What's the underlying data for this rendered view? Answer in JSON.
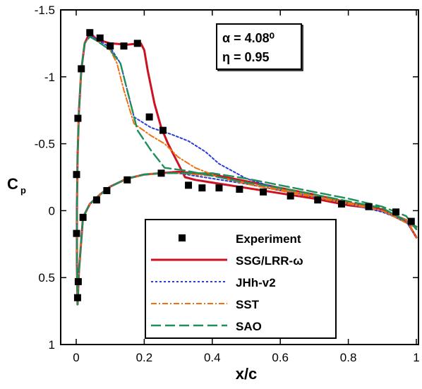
{
  "chart_data": {
    "type": "line",
    "title": "",
    "xlabel": "x/c",
    "ylabel": "C",
    "ylabel_sub": "p",
    "xlim": [
      0,
      1
    ],
    "ylim": [
      -1.5,
      1
    ],
    "y_inverted": true,
    "grid": false,
    "legend_position": "bottom-center",
    "xticks": [
      {
        "v": 0,
        "label": "0"
      },
      {
        "v": 0.2,
        "label": "0.2"
      },
      {
        "v": 0.4,
        "label": "0.4"
      },
      {
        "v": 0.6,
        "label": "0.6"
      },
      {
        "v": 0.8,
        "label": "0.8"
      },
      {
        "v": 1,
        "label": "1"
      }
    ],
    "yticks": [
      {
        "v": -1.5,
        "label": "-1.5"
      },
      {
        "v": -1,
        "label": "-1"
      },
      {
        "v": -0.5,
        "label": "-0.5"
      },
      {
        "v": 0,
        "label": "0"
      },
      {
        "v": 0.5,
        "label": "0.5"
      },
      {
        "v": 1,
        "label": "1"
      }
    ],
    "annotation": {
      "line1": "α = 4.08⁰",
      "line2": "η = 0.95"
    },
    "experiment": {
      "name": "Experiment",
      "upper": [
        [
          0.001,
          -0.27
        ],
        [
          0.005,
          -0.69
        ],
        [
          0.015,
          -1.06
        ],
        [
          0.04,
          -1.33
        ],
        [
          0.07,
          -1.29
        ],
        [
          0.1,
          -1.23
        ],
        [
          0.14,
          -1.23
        ],
        [
          0.18,
          -1.25
        ],
        [
          0.215,
          -0.7
        ],
        [
          0.255,
          -0.6
        ]
      ],
      "lower": [
        [
          0.001,
          0.17
        ],
        [
          0.004,
          0.65
        ],
        [
          0.006,
          0.53
        ],
        [
          0.02,
          0.05
        ],
        [
          0.06,
          -0.08
        ],
        [
          0.09,
          -0.15
        ],
        [
          0.15,
          -0.23
        ],
        [
          0.25,
          -0.28
        ],
        [
          0.33,
          -0.19
        ],
        [
          0.37,
          -0.17
        ],
        [
          0.42,
          -0.17
        ],
        [
          0.48,
          -0.16
        ],
        [
          0.55,
          -0.14
        ],
        [
          0.63,
          -0.11
        ],
        [
          0.71,
          -0.08
        ],
        [
          0.78,
          -0.05
        ],
        [
          0.86,
          -0.03
        ],
        [
          0.94,
          0.01
        ],
        [
          0.985,
          0.08
        ]
      ]
    },
    "series": [
      {
        "name": "SSG/LRR-ω",
        "color": "#cc1122",
        "dash": "",
        "width": 3,
        "points": [
          [
            1.0,
            0.12
          ],
          [
            0.9,
            -0.01
          ],
          [
            0.8,
            -0.04
          ],
          [
            0.7,
            -0.09
          ],
          [
            0.6,
            -0.13
          ],
          [
            0.5,
            -0.17
          ],
          [
            0.4,
            -0.21
          ],
          [
            0.35,
            -0.23
          ],
          [
            0.32,
            -0.25
          ],
          [
            0.3,
            -0.35
          ],
          [
            0.27,
            -0.5
          ],
          [
            0.25,
            -0.62
          ],
          [
            0.23,
            -0.8
          ],
          [
            0.21,
            -1.05
          ],
          [
            0.2,
            -1.2
          ],
          [
            0.19,
            -1.25
          ],
          [
            0.15,
            -1.24
          ],
          [
            0.1,
            -1.25
          ],
          [
            0.06,
            -1.28
          ],
          [
            0.04,
            -1.33
          ],
          [
            0.025,
            -1.25
          ],
          [
            0.015,
            -1.05
          ],
          [
            0.008,
            -0.75
          ],
          [
            0.004,
            -0.4
          ],
          [
            0.002,
            0.0
          ],
          [
            0.002,
            0.4
          ],
          [
            0.004,
            0.7
          ],
          [
            0.008,
            0.45
          ],
          [
            0.02,
            0.05
          ],
          [
            0.04,
            -0.05
          ],
          [
            0.07,
            -0.12
          ],
          [
            0.1,
            -0.18
          ],
          [
            0.15,
            -0.24
          ],
          [
            0.2,
            -0.27
          ],
          [
            0.25,
            -0.28
          ],
          [
            0.3,
            -0.29
          ],
          [
            0.4,
            -0.27
          ],
          [
            0.5,
            -0.22
          ],
          [
            0.6,
            -0.17
          ],
          [
            0.7,
            -0.12
          ],
          [
            0.8,
            -0.06
          ],
          [
            0.9,
            0.0
          ],
          [
            0.97,
            0.07
          ],
          [
            1.0,
            0.2
          ]
        ]
      },
      {
        "name": "JHh-v2",
        "color": "#2a3cdc",
        "dash": "3,3",
        "width": 2,
        "points": [
          [
            1.0,
            0.13
          ],
          [
            0.9,
            0.0
          ],
          [
            0.8,
            -0.05
          ],
          [
            0.7,
            -0.1
          ],
          [
            0.6,
            -0.16
          ],
          [
            0.5,
            -0.24
          ],
          [
            0.42,
            -0.35
          ],
          [
            0.38,
            -0.44
          ],
          [
            0.33,
            -0.52
          ],
          [
            0.28,
            -0.57
          ],
          [
            0.22,
            -0.62
          ],
          [
            0.17,
            -0.7
          ],
          [
            0.15,
            -0.9
          ],
          [
            0.13,
            -1.1
          ],
          [
            0.1,
            -1.22
          ],
          [
            0.06,
            -1.28
          ],
          [
            0.04,
            -1.31
          ],
          [
            0.025,
            -1.25
          ],
          [
            0.015,
            -1.05
          ],
          [
            0.008,
            -0.75
          ],
          [
            0.004,
            -0.4
          ],
          [
            0.002,
            0.0
          ],
          [
            0.002,
            0.4
          ],
          [
            0.004,
            0.7
          ],
          [
            0.008,
            0.45
          ],
          [
            0.02,
            0.05
          ],
          [
            0.04,
            -0.05
          ],
          [
            0.07,
            -0.12
          ],
          [
            0.1,
            -0.18
          ],
          [
            0.15,
            -0.24
          ],
          [
            0.2,
            -0.27
          ],
          [
            0.25,
            -0.28
          ],
          [
            0.3,
            -0.28
          ],
          [
            0.4,
            -0.24
          ],
          [
            0.5,
            -0.2
          ],
          [
            0.6,
            -0.15
          ],
          [
            0.7,
            -0.1
          ],
          [
            0.8,
            -0.05
          ],
          [
            0.9,
            0.01
          ],
          [
            0.97,
            0.08
          ],
          [
            1.0,
            0.2
          ]
        ]
      },
      {
        "name": "SST",
        "color": "#f07010",
        "dash": "8,3,2,3",
        "width": 2,
        "points": [
          [
            1.0,
            0.13
          ],
          [
            0.9,
            0.0
          ],
          [
            0.8,
            -0.05
          ],
          [
            0.7,
            -0.1
          ],
          [
            0.6,
            -0.15
          ],
          [
            0.5,
            -0.2
          ],
          [
            0.42,
            -0.25
          ],
          [
            0.35,
            -0.32
          ],
          [
            0.3,
            -0.4
          ],
          [
            0.26,
            -0.5
          ],
          [
            0.22,
            -0.56
          ],
          [
            0.17,
            -0.65
          ],
          [
            0.14,
            -0.9
          ],
          [
            0.12,
            -1.1
          ],
          [
            0.1,
            -1.2
          ],
          [
            0.06,
            -1.27
          ],
          [
            0.04,
            -1.3
          ],
          [
            0.025,
            -1.25
          ],
          [
            0.015,
            -1.05
          ],
          [
            0.008,
            -0.75
          ],
          [
            0.004,
            -0.4
          ],
          [
            0.002,
            0.0
          ],
          [
            0.002,
            0.4
          ],
          [
            0.004,
            0.7
          ],
          [
            0.008,
            0.45
          ],
          [
            0.02,
            0.05
          ],
          [
            0.04,
            -0.05
          ],
          [
            0.07,
            -0.12
          ],
          [
            0.1,
            -0.18
          ],
          [
            0.15,
            -0.24
          ],
          [
            0.2,
            -0.27
          ],
          [
            0.25,
            -0.28
          ],
          [
            0.3,
            -0.28
          ],
          [
            0.4,
            -0.26
          ],
          [
            0.5,
            -0.21
          ],
          [
            0.6,
            -0.16
          ],
          [
            0.7,
            -0.11
          ],
          [
            0.8,
            -0.06
          ],
          [
            0.9,
            0.0
          ],
          [
            0.97,
            0.07
          ],
          [
            1.0,
            0.2
          ]
        ]
      },
      {
        "name": "SAO",
        "color": "#1f8f5a",
        "dash": "14,6",
        "width": 2.4,
        "points": [
          [
            1.0,
            0.12
          ],
          [
            0.9,
            -0.02
          ],
          [
            0.8,
            -0.07
          ],
          [
            0.7,
            -0.12
          ],
          [
            0.6,
            -0.17
          ],
          [
            0.5,
            -0.21
          ],
          [
            0.4,
            -0.26
          ],
          [
            0.32,
            -0.3
          ],
          [
            0.26,
            -0.32
          ],
          [
            0.22,
            -0.45
          ],
          [
            0.18,
            -0.6
          ],
          [
            0.15,
            -0.9
          ],
          [
            0.13,
            -1.1
          ],
          [
            0.1,
            -1.2
          ],
          [
            0.06,
            -1.27
          ],
          [
            0.04,
            -1.3
          ],
          [
            0.025,
            -1.25
          ],
          [
            0.015,
            -1.05
          ],
          [
            0.008,
            -0.75
          ],
          [
            0.004,
            -0.4
          ],
          [
            0.002,
            0.0
          ],
          [
            0.002,
            0.4
          ],
          [
            0.004,
            0.7
          ],
          [
            0.008,
            0.45
          ],
          [
            0.02,
            0.05
          ],
          [
            0.04,
            -0.05
          ],
          [
            0.07,
            -0.12
          ],
          [
            0.1,
            -0.18
          ],
          [
            0.15,
            -0.24
          ],
          [
            0.2,
            -0.27
          ],
          [
            0.25,
            -0.28
          ],
          [
            0.3,
            -0.28
          ],
          [
            0.4,
            -0.28
          ],
          [
            0.5,
            -0.24
          ],
          [
            0.6,
            -0.19
          ],
          [
            0.7,
            -0.14
          ],
          [
            0.8,
            -0.09
          ],
          [
            0.9,
            -0.03
          ],
          [
            0.97,
            0.04
          ],
          [
            1.0,
            0.14
          ]
        ]
      }
    ]
  }
}
